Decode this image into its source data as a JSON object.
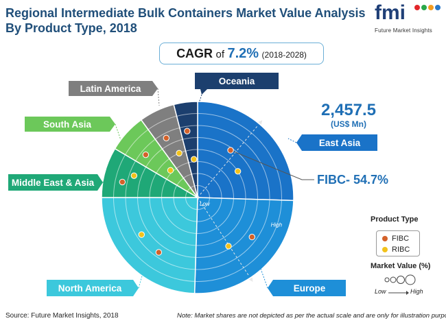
{
  "title_line1": "Regional Intermediate Bulk Containers Market Value Analysis",
  "title_line2": "By Product Type, 2018",
  "logo": {
    "text": "fmi",
    "subtitle": "Future Market Insights"
  },
  "cagr": {
    "label": "CAGR",
    "of": "of",
    "value": "7.2%",
    "period": "(2018-2028)"
  },
  "total": {
    "value": "2,457.5",
    "unit": "(US$ Mn)"
  },
  "callout": "FIBC- 54.7%",
  "legend": {
    "title": "Product Type",
    "items": [
      {
        "label": "FIBC",
        "color": "#d4622a"
      },
      {
        "label": "RIBC",
        "color": "#f2c21b"
      }
    ]
  },
  "market_value_legend": {
    "title": "Market Value (%)",
    "low": "Low",
    "high": "High"
  },
  "scale_labels": {
    "low": "Low",
    "high": "High"
  },
  "footer": {
    "source": "Source: Future Market Insights, 2018",
    "note": "Note: Market shares are not depicted as per the actual scale and are only for illustration purposes."
  },
  "chart_data": {
    "type": "pie",
    "title": "Regional Intermediate Bulk Containers Market Value Analysis By Product Type, 2018",
    "categories": [
      "East Asia",
      "Europe",
      "North America",
      "Middle East & Asia",
      "South Asia",
      "Latin America",
      "Oceania"
    ],
    "values": [
      25.5,
      25.0,
      24.5,
      8.5,
      6.5,
      6.0,
      4.0
    ],
    "colors": [
      "#1a73c8",
      "#1e8fd8",
      "#3cc8dc",
      "#1fa877",
      "#6cc85a",
      "#7f7f7f",
      "#1c3f6e"
    ],
    "series": [
      {
        "name": "FIBC",
        "color": "#d4622a",
        "radial_level": [
          0.6,
          0.7,
          0.7,
          0.8,
          0.7,
          0.7,
          0.7
        ]
      },
      {
        "name": "RIBC",
        "color": "#f2c21b",
        "radial_level": [
          0.5,
          0.6,
          0.7,
          0.7,
          0.4,
          0.5,
          0.4
        ]
      }
    ]
  }
}
